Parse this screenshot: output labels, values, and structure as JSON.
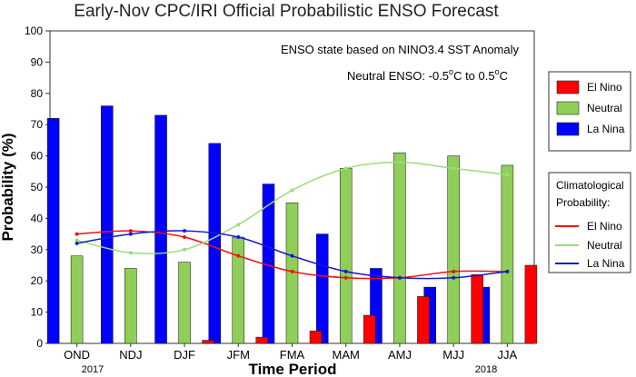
{
  "chart_data": {
    "type": "bar",
    "title": "Early-Nov CPC/IRI Official Probabilistic ENSO Forecast",
    "xlabel": "Time Period",
    "ylabel": "Probability (%)",
    "ylim": [
      0,
      100
    ],
    "yticks": [
      0,
      10,
      20,
      30,
      40,
      50,
      60,
      70,
      80,
      90,
      100
    ],
    "grid": false,
    "categories": [
      "OND",
      "NDJ",
      "DJF",
      "JFM",
      "FMA",
      "MAM",
      "AMJ",
      "MJJ",
      "JJA"
    ],
    "year_labels": {
      "first": "2017",
      "last": "2018"
    },
    "annotations": {
      "line1": "ENSO state based on NINO3.4 SST Anomaly",
      "line2_prefix": "Neutral ENSO: ",
      "line2_a": "-0.5",
      "line2_b": " to 0.5",
      "degree_symbol": "o",
      "line2_unit": "C"
    },
    "series": [
      {
        "name": "La Nina",
        "color": "#0000ff",
        "values": [
          72,
          76,
          73,
          64,
          51,
          35,
          24,
          18,
          18
        ]
      },
      {
        "name": "Neutral",
        "color": "#8fcf59",
        "values": [
          28,
          24,
          26,
          34,
          45,
          56,
          61,
          60,
          57
        ]
      },
      {
        "name": "El Nino",
        "color": "#ff0000",
        "values": [
          0,
          0,
          1,
          2,
          4,
          9,
          15,
          22,
          25
        ]
      }
    ],
    "climatology": {
      "title_line1": "Climatological",
      "title_line2": "Probability:",
      "series": [
        {
          "name": "El Nino",
          "color": "#ee1111",
          "values": [
            35,
            36,
            34,
            28,
            23,
            21,
            21,
            23,
            23
          ]
        },
        {
          "name": "Neutral",
          "color": "#99dd77",
          "values": [
            33,
            29,
            30,
            38,
            49,
            56,
            58,
            56,
            54
          ]
        },
        {
          "name": "La Nina",
          "color": "#1a1acc",
          "values": [
            32,
            35,
            36,
            34,
            28,
            23,
            21,
            21,
            23
          ]
        }
      ]
    },
    "legend": {
      "placement": "right",
      "bars": [
        {
          "name": "El Nino",
          "color": "#ff0000"
        },
        {
          "name": "Neutral",
          "color": "#8fcf59"
        },
        {
          "name": "La Nina",
          "color": "#0000ff"
        }
      ]
    }
  }
}
